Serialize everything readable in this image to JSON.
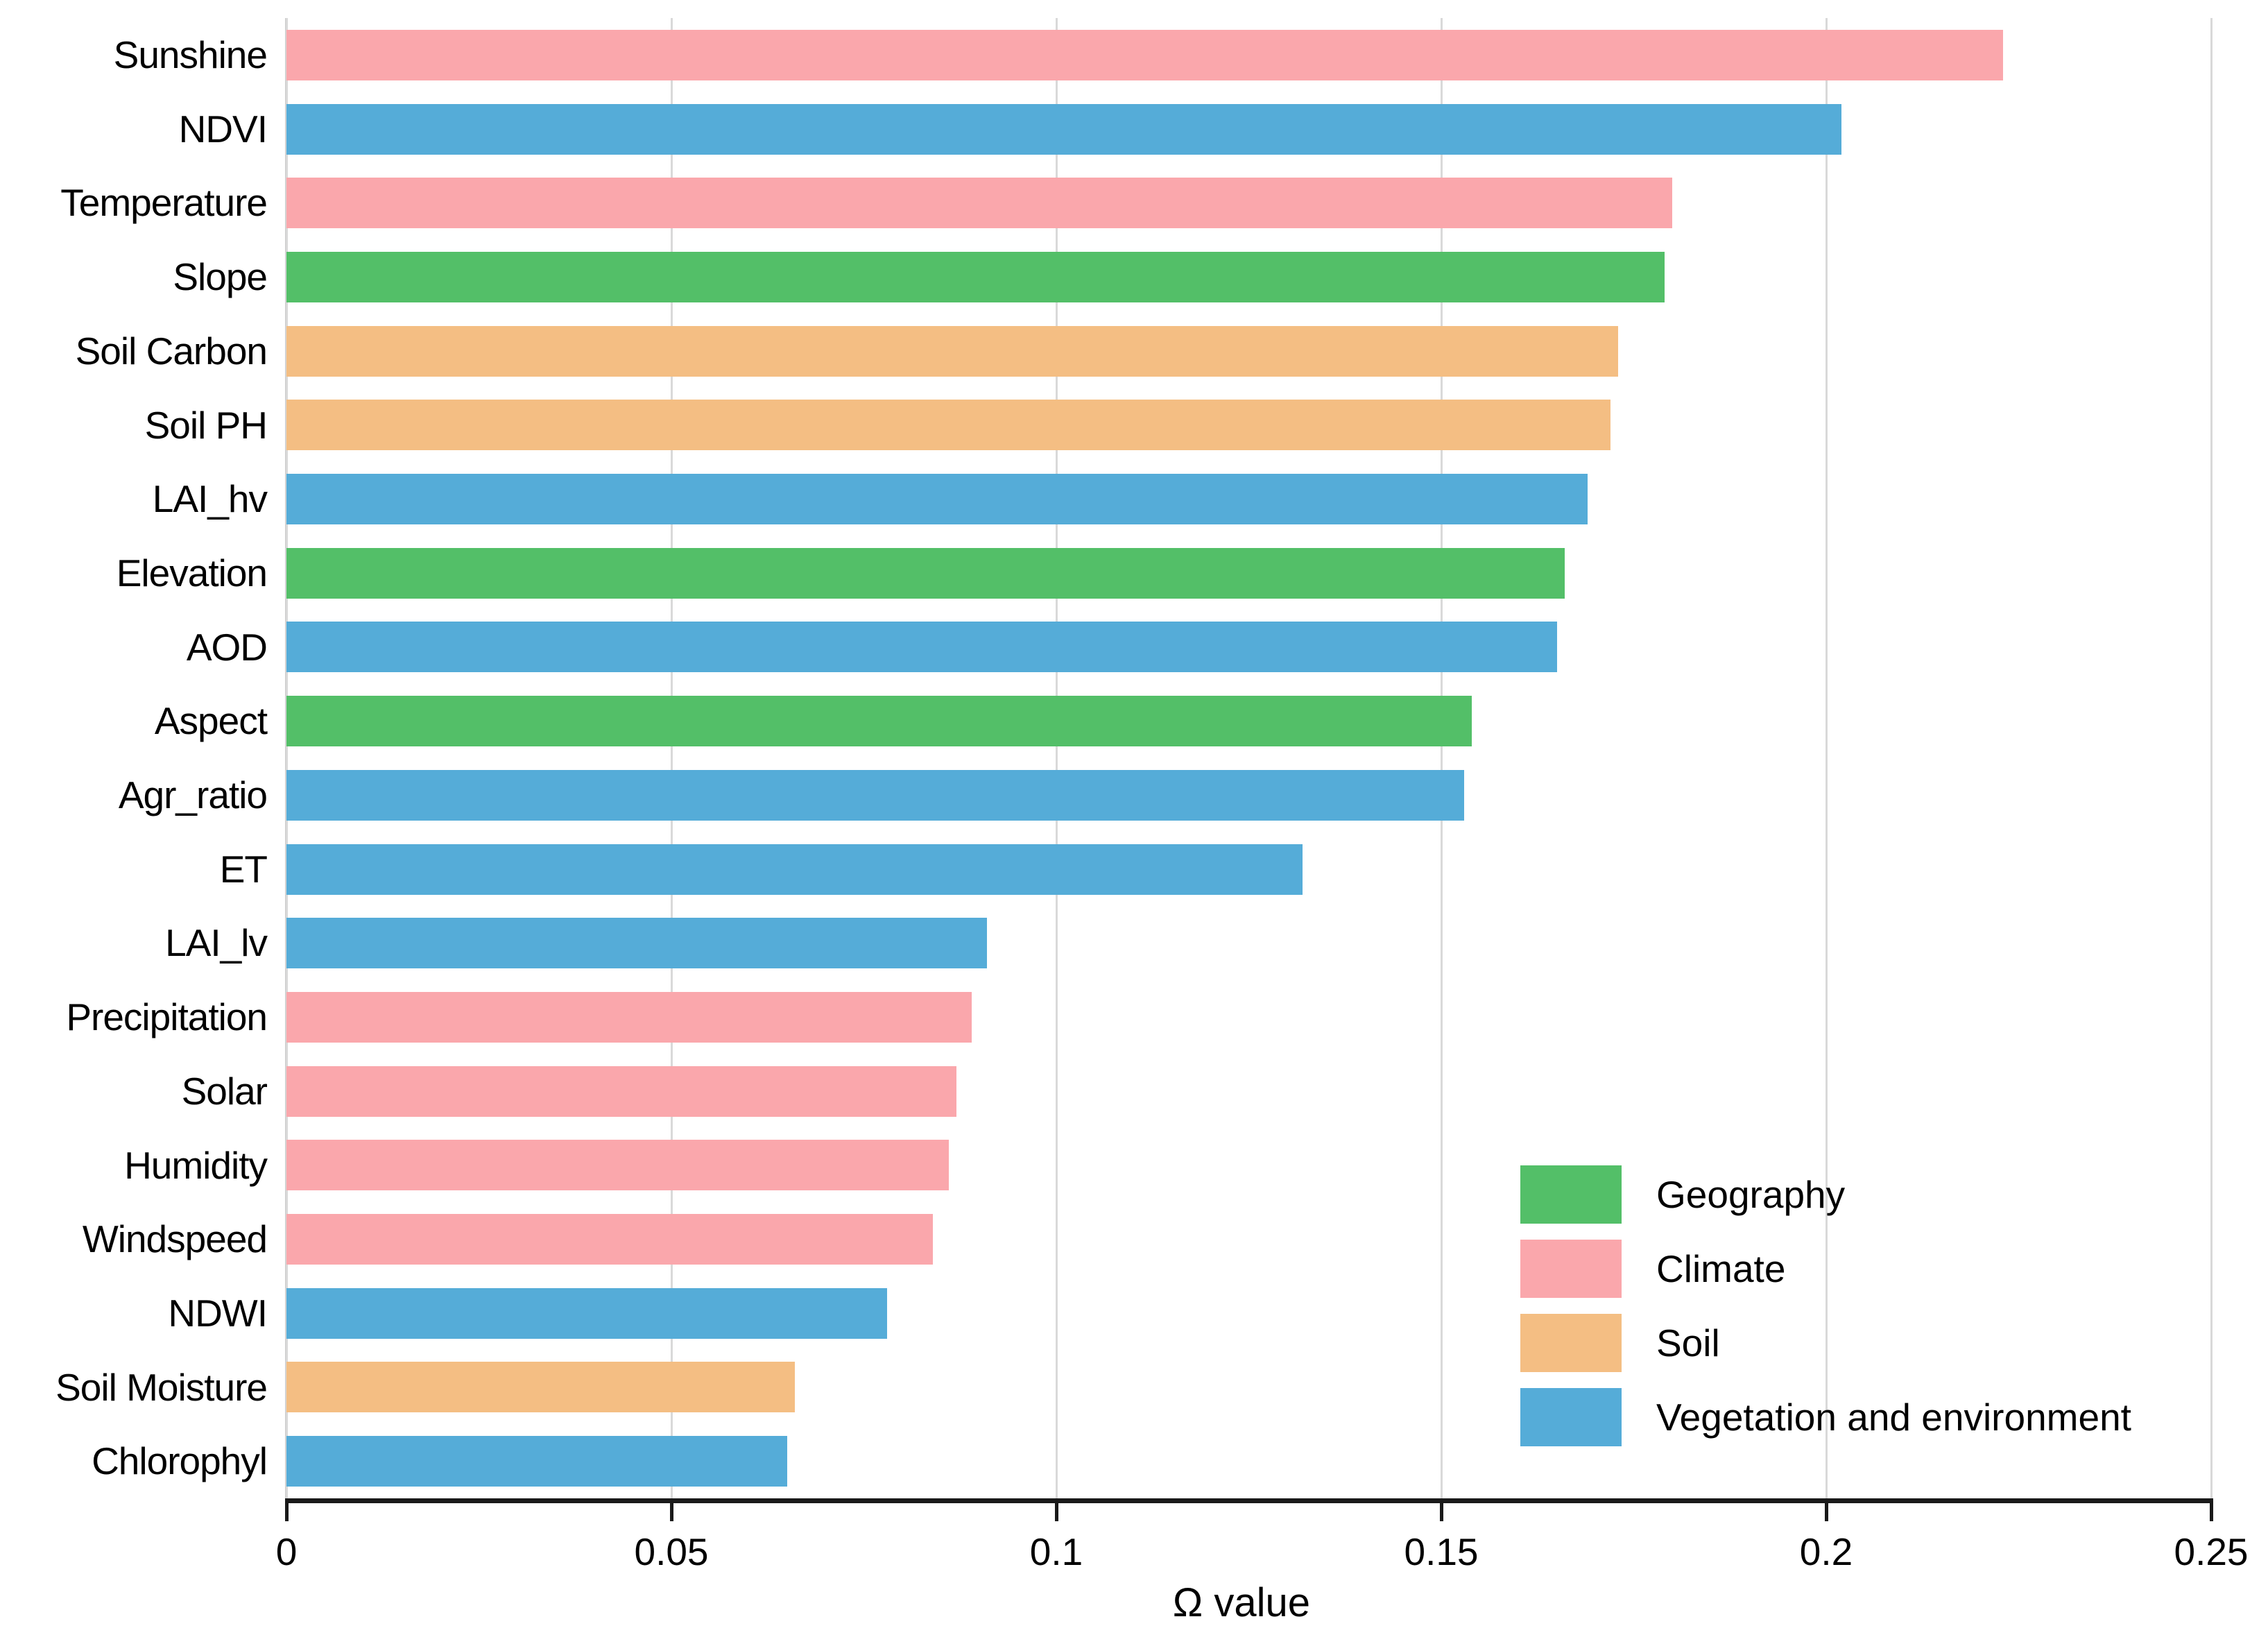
{
  "chart_data": {
    "type": "bar",
    "orientation": "horizontal",
    "xlabel": "Ω value",
    "xlim": [
      0,
      0.25
    ],
    "xtick_labels": [
      "0",
      "0.05",
      "0.1",
      "0.15",
      "0.2",
      "0.25"
    ],
    "xtick_values": [
      0,
      0.05,
      0.1,
      0.15,
      0.2,
      0.25
    ],
    "grid": true,
    "legend_position": "lower right",
    "groups": [
      {
        "name": "Geography",
        "color": "#53BF68"
      },
      {
        "name": "Climate",
        "color": "#FAA7AC"
      },
      {
        "name": "Soil",
        "color": "#F4BE83"
      },
      {
        "name": "Vegetation and environment",
        "color": "#55ACD8"
      }
    ],
    "bars": [
      {
        "label": "Sunshine",
        "value": 0.223,
        "group": "Climate"
      },
      {
        "label": "NDVI",
        "value": 0.202,
        "group": "Vegetation and environment"
      },
      {
        "label": "Temperature",
        "value": 0.18,
        "group": "Climate"
      },
      {
        "label": "Slope",
        "value": 0.179,
        "group": "Geography"
      },
      {
        "label": "Soil Carbon",
        "value": 0.173,
        "group": "Soil"
      },
      {
        "label": "Soil PH",
        "value": 0.172,
        "group": "Soil"
      },
      {
        "label": "LAI_hv",
        "value": 0.169,
        "group": "Vegetation and environment"
      },
      {
        "label": "Elevation",
        "value": 0.166,
        "group": "Geography"
      },
      {
        "label": "AOD",
        "value": 0.165,
        "group": "Vegetation and environment"
      },
      {
        "label": "Aspect",
        "value": 0.154,
        "group": "Geography"
      },
      {
        "label": "Agr_ratio",
        "value": 0.153,
        "group": "Vegetation and environment"
      },
      {
        "label": "ET",
        "value": 0.132,
        "group": "Vegetation and environment"
      },
      {
        "label": "LAI_lv",
        "value": 0.091,
        "group": "Vegetation and environment"
      },
      {
        "label": "Precipitation",
        "value": 0.089,
        "group": "Climate"
      },
      {
        "label": "Solar",
        "value": 0.087,
        "group": "Climate"
      },
      {
        "label": "Humidity",
        "value": 0.086,
        "group": "Climate"
      },
      {
        "label": "Windspeed",
        "value": 0.084,
        "group": "Climate"
      },
      {
        "label": "NDWI",
        "value": 0.078,
        "group": "Vegetation and environment"
      },
      {
        "label": "Soil Moisture",
        "value": 0.066,
        "group": "Soil"
      },
      {
        "label": "Chlorophyl",
        "value": 0.065,
        "group": "Vegetation and environment"
      }
    ]
  },
  "colors": {
    "background": "#ffffff",
    "axis": "#1a1a1a",
    "gridline": "#d9d9d9",
    "text": "#000000"
  }
}
